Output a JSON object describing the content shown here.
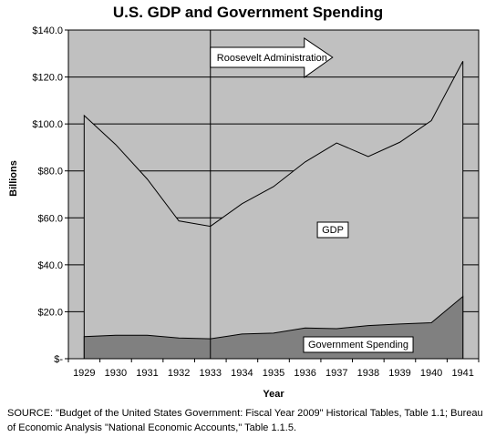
{
  "chart_data": {
    "type": "area",
    "title": "U.S. GDP and Government Spending",
    "xlabel": "Year",
    "ylabel": "Billions",
    "x": [
      "1929",
      "1930",
      "1931",
      "1932",
      "1933",
      "1934",
      "1935",
      "1936",
      "1937",
      "1938",
      "1939",
      "1940",
      "1941"
    ],
    "ylim": [
      0,
      140
    ],
    "y_ticks": [
      "$-",
      "$20.0",
      "$40.0",
      "$60.0",
      "$80.0",
      "$100.0",
      "$120.0",
      "$140.0"
    ],
    "grid": true,
    "series": [
      {
        "name": "GDP",
        "values": [
          103.6,
          91.2,
          76.5,
          58.7,
          56.4,
          66.0,
          73.3,
          83.8,
          91.9,
          86.1,
          92.2,
          101.4,
          126.7
        ],
        "color": "#c0c0c0"
      },
      {
        "name": "Government Spending",
        "values": [
          9.4,
          10.0,
          10.0,
          8.8,
          8.5,
          10.5,
          10.9,
          13.1,
          12.8,
          14.1,
          14.8,
          15.3,
          26.5
        ],
        "color": "#808080"
      }
    ],
    "annotations": [
      {
        "text": "Roosevelt Administration",
        "from_x": "1933"
      }
    ],
    "source": "SOURCE: \"Budget of the United States Government: Fiscal Year 2009\" Historical Tables, Table 1.1; Bureau of Economic Analysis \"National Economic Accounts,\" Table 1.1.5."
  }
}
